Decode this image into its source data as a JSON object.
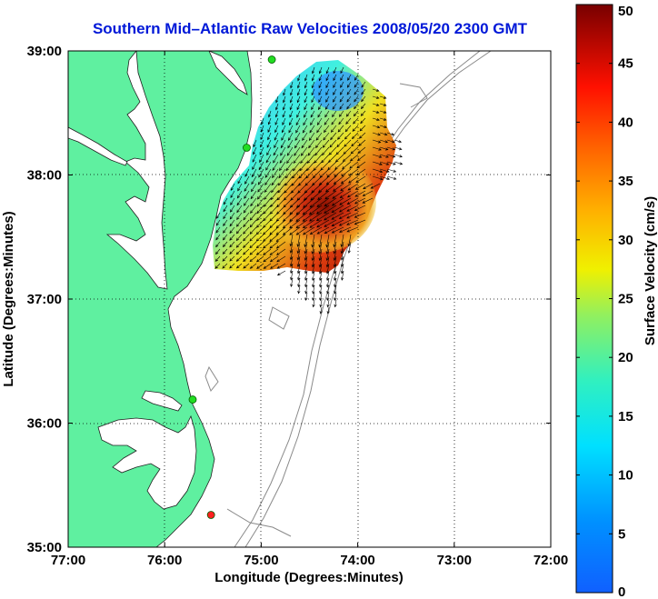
{
  "title": "Southern Mid–Atlantic Raw Velocities 2008/05/20 2300 GMT",
  "map": {
    "xlabel": "Longitude (Degrees:Minutes)",
    "ylabel": "Latitude (Degrees:Minutes)",
    "x_ticks": [
      "77:00",
      "76:00",
      "75:00",
      "74:00",
      "73:00",
      "72:00"
    ],
    "y_ticks": [
      "39:00",
      "38:00",
      "37:00",
      "36:00",
      "35:00"
    ],
    "lon_range": [
      -77,
      -72
    ],
    "lat_range": [
      35,
      39
    ],
    "grid": "dotted",
    "land_color": "#5ff0a0",
    "contour_color": "#8a8a8a"
  },
  "colorbar": {
    "label": "Surface Velocity (cm/s)",
    "ticks": [
      "0",
      "5",
      "10",
      "15",
      "20",
      "25",
      "30",
      "35",
      "40",
      "45",
      "50"
    ],
    "range": [
      0,
      50
    ],
    "colormap": "jet"
  },
  "stations": [
    {
      "lon": -74.89,
      "lat": 38.93,
      "color": "#22dd22"
    },
    {
      "lon": -75.15,
      "lat": 38.22,
      "color": "#22dd22"
    },
    {
      "lon": -75.71,
      "lat": 36.19,
      "color": "#22dd22"
    },
    {
      "lon": -75.52,
      "lat": 35.26,
      "color": "#ff2020"
    }
  ]
}
